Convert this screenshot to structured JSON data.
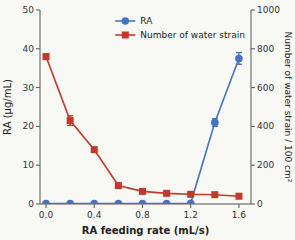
{
  "chart_data": {
    "type": "line",
    "x": [
      0,
      0.2,
      0.4,
      0.6,
      0.8,
      1.0,
      1.2,
      1.4,
      1.6
    ],
    "series": [
      {
        "name": "RA",
        "color": "#4472c4",
        "marker": "circle",
        "axis": "y",
        "values": [
          0.1,
          0.1,
          0.1,
          0.1,
          0.1,
          0.1,
          0.2,
          21.0,
          37.5
        ],
        "err_lo": [
          0,
          0,
          0,
          0,
          0,
          0,
          0,
          1.0,
          1.5
        ],
        "err_hi": [
          0,
          0,
          0,
          0,
          0,
          0,
          0,
          1.0,
          1.5
        ]
      },
      {
        "name": "Number of water strain",
        "color": "#c0392b",
        "marker": "square",
        "axis": "y2",
        "values": [
          760,
          430,
          280,
          95,
          65,
          55,
          50,
          48,
          40
        ],
        "err_lo": [
          0,
          25,
          0,
          0,
          0,
          0,
          0,
          0,
          0
        ],
        "err_hi": [
          0,
          25,
          0,
          0,
          0,
          0,
          0,
          0,
          0
        ]
      }
    ],
    "xlabel": "RA feeding rate (mL/s)",
    "ylabel": "RA (μg/mL)",
    "y2label": "Number of water strain / 100 cm²",
    "xlim": [
      -0.05,
      1.7
    ],
    "xticks": [
      {
        "value": 0,
        "label": "0.0"
      },
      0.4,
      0.8,
      1.2,
      1.6
    ],
    "ylim": [
      0,
      50
    ],
    "yticks": [
      0,
      10,
      20,
      30,
      40,
      50
    ],
    "y2lim": [
      0,
      1000
    ],
    "y2ticks": [
      0,
      200,
      400,
      600,
      800,
      1000
    ],
    "legend": "upper right",
    "grid": false
  }
}
